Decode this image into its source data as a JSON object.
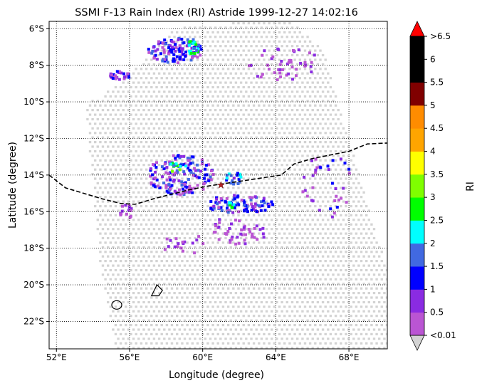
{
  "chart_data": {
    "type": "heatmap",
    "title": "SSMI F-13 Rain Index (RI) Astride 1999-12-27 14:02:16",
    "xlabel": "Longitude (degree)",
    "ylabel": "Latitude (degree)",
    "xlim": [
      51.6,
      70.1
    ],
    "ylim": [
      -23.5,
      -5.6
    ],
    "x_ticks": [
      52,
      56,
      60,
      64,
      68
    ],
    "x_tick_labels": [
      "52°E",
      "56°E",
      "60°E",
      "64°E",
      "68°E"
    ],
    "y_ticks": [
      -6,
      -8,
      -10,
      -12,
      -14,
      -16,
      -18,
      -20,
      -22
    ],
    "y_tick_labels": [
      "6°S",
      "8°S",
      "10°S",
      "12°S",
      "14°S",
      "16°S",
      "18°S",
      "20°S",
      "22°S"
    ],
    "grid": true,
    "colorbar": {
      "label": "RI",
      "boundaries": [
        0.01,
        0.5,
        1,
        1.5,
        2,
        2.5,
        3,
        3.5,
        4,
        4.5,
        5,
        5.5,
        6,
        6.5
      ],
      "tick_labels": [
        "<0.01",
        "0.5",
        "1",
        "1.5",
        "2",
        "2.5",
        "3",
        "3.5",
        "4",
        "4.5",
        "5",
        "5.5",
        "6",
        ">6.5"
      ],
      "colors": [
        "#ba55d3",
        "#8a2be2",
        "#0000ff",
        "#4169e1",
        "#00ffff",
        "#00ff00",
        "#7fff00",
        "#ffff00",
        "#ffa500",
        "#ff8c00",
        "#800000",
        "#000000",
        "#000000"
      ],
      "under_color": "#d3d3d3",
      "over_color": "#ff0000"
    },
    "swath_color": "#d3d3d3",
    "track_lon": [
      51.6,
      52.5,
      53.5,
      54.5,
      55.5,
      56.3,
      57.3,
      58.3,
      59.3,
      60.3,
      61.3,
      62.3,
      63.3,
      64.3,
      65.0,
      66.0,
      67.0,
      68.0,
      69.0,
      70.1
    ],
    "track_lat": [
      -14.0,
      -14.7,
      -15.0,
      -15.3,
      -15.55,
      -15.6,
      -15.3,
      -15.05,
      -14.8,
      -14.6,
      -14.45,
      -14.3,
      -14.15,
      -14.0,
      -13.4,
      -13.1,
      -12.9,
      -12.7,
      -12.3,
      -12.25
    ],
    "storm_center": {
      "lon": 61.0,
      "lat": -14.55
    },
    "rain_clusters": [
      {
        "lon_min": 56.8,
        "lon_max": 60.2,
        "lat_min": -8.0,
        "lat_max": -6.4,
        "intensity": "moderate"
      },
      {
        "lon_min": 59.2,
        "lon_max": 59.8,
        "lat_min": -7.5,
        "lat_max": -6.6,
        "intensity": "peak 2-3"
      },
      {
        "lon_min": 54.8,
        "lon_max": 56.1,
        "lat_min": -8.9,
        "lat_max": -8.3,
        "intensity": "light-moderate"
      },
      {
        "lon_min": 57.0,
        "lon_max": 60.5,
        "lat_min": -15.2,
        "lat_max": -13.0,
        "intensity": "moderate"
      },
      {
        "lon_min": 58.3,
        "lon_max": 59.0,
        "lat_min": -13.9,
        "lat_max": -13.3,
        "intensity": "peak 3"
      },
      {
        "lon_min": 61.2,
        "lon_max": 62.2,
        "lat_min": -14.6,
        "lat_max": -13.8,
        "intensity": "moderate"
      },
      {
        "lon_min": 60.0,
        "lon_max": 63.8,
        "lat_min": -16.2,
        "lat_max": -15.1,
        "intensity": "moderate"
      },
      {
        "lon_min": 61.4,
        "lon_max": 61.8,
        "lat_min": -15.8,
        "lat_max": -15.3,
        "intensity": "peak 2"
      }
    ]
  }
}
